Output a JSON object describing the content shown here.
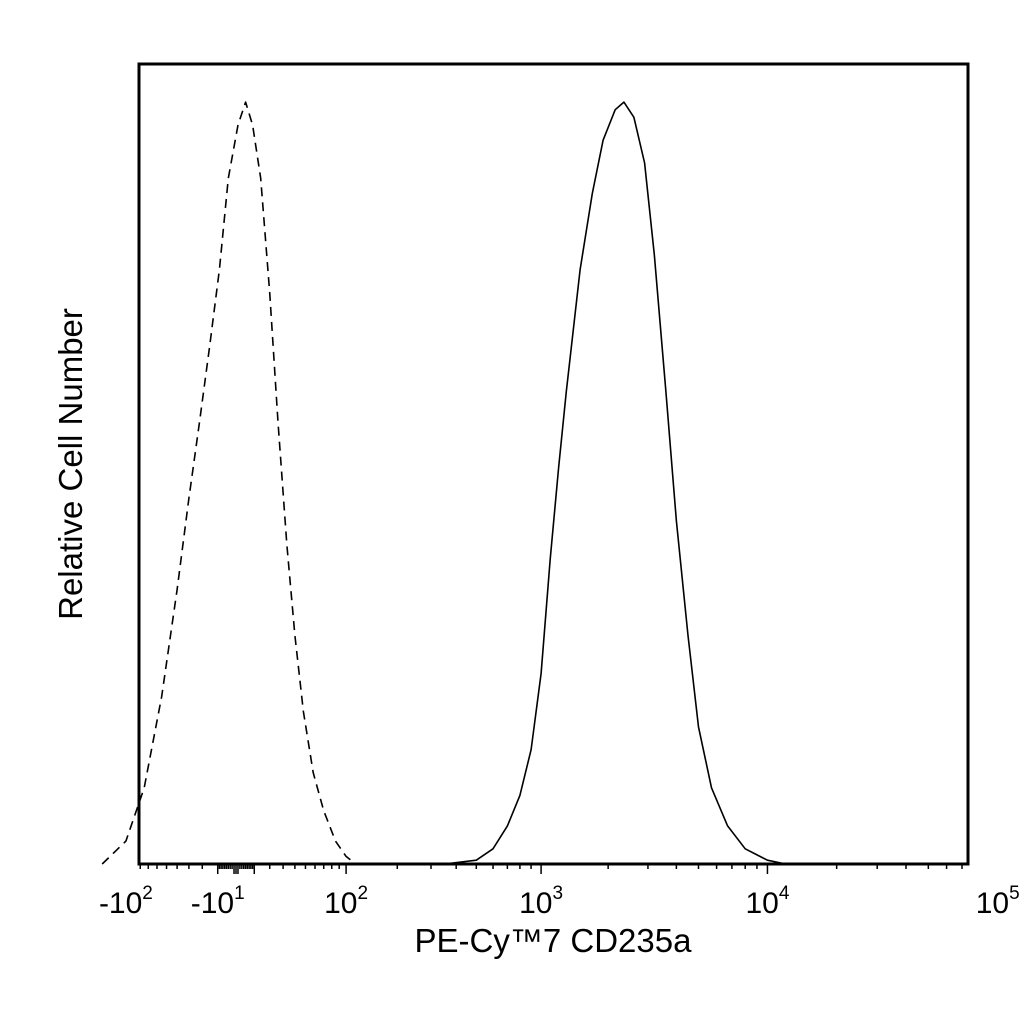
{
  "chart_data": {
    "type": "line",
    "xlabel": "PE-Cy™7 CD235a",
    "ylabel": "Relative Cell Number",
    "x_scale": "biexponential",
    "xlim": [
      -300,
      250000
    ],
    "ylim": [
      0,
      1.05
    ],
    "tick_labels": [
      {
        "value": -100,
        "base": "-10",
        "exp": "2"
      },
      {
        "value": -10,
        "base": "-10",
        "exp": "1"
      },
      {
        "value": 100,
        "base": "10",
        "exp": "2"
      },
      {
        "value": 1000,
        "base": "10",
        "exp": "3"
      },
      {
        "value": 10000,
        "base": "10",
        "exp": "4"
      },
      {
        "value": 100000,
        "base": "10",
        "exp": "5"
      }
    ],
    "series": [
      {
        "style": "dashed",
        "points": [
          [
            -140,
            0.0
          ],
          [
            -100,
            0.03
          ],
          [
            -75,
            0.1
          ],
          [
            -55,
            0.22
          ],
          [
            -40,
            0.36
          ],
          [
            -30,
            0.48
          ],
          [
            -22,
            0.58
          ],
          [
            -15,
            0.68
          ],
          [
            -9,
            0.78
          ],
          [
            -4,
            0.9
          ],
          [
            1,
            0.97
          ],
          [
            5,
            1.0
          ],
          [
            9,
            0.97
          ],
          [
            14,
            0.9
          ],
          [
            20,
            0.75
          ],
          [
            26,
            0.58
          ],
          [
            33,
            0.42
          ],
          [
            40,
            0.3
          ],
          [
            48,
            0.2
          ],
          [
            58,
            0.12
          ],
          [
            70,
            0.07
          ],
          [
            85,
            0.03
          ],
          [
            100,
            0.01
          ],
          [
            115,
            0.0
          ]
        ]
      },
      {
        "style": "solid",
        "points": [
          [
            350,
            0.0
          ],
          [
            500,
            0.005
          ],
          [
            600,
            0.02
          ],
          [
            700,
            0.05
          ],
          [
            800,
            0.09
          ],
          [
            900,
            0.15
          ],
          [
            1000,
            0.25
          ],
          [
            1100,
            0.4
          ],
          [
            1200,
            0.52
          ],
          [
            1300,
            0.62
          ],
          [
            1500,
            0.78
          ],
          [
            1700,
            0.88
          ],
          [
            1900,
            0.95
          ],
          [
            2150,
            0.99
          ],
          [
            2350,
            1.0
          ],
          [
            2600,
            0.98
          ],
          [
            2900,
            0.92
          ],
          [
            3200,
            0.8
          ],
          [
            3600,
            0.62
          ],
          [
            4000,
            0.45
          ],
          [
            4500,
            0.3
          ],
          [
            5000,
            0.18
          ],
          [
            5700,
            0.1
          ],
          [
            6700,
            0.05
          ],
          [
            8000,
            0.02
          ],
          [
            10000,
            0.005
          ],
          [
            12000,
            0.0
          ]
        ]
      }
    ]
  }
}
